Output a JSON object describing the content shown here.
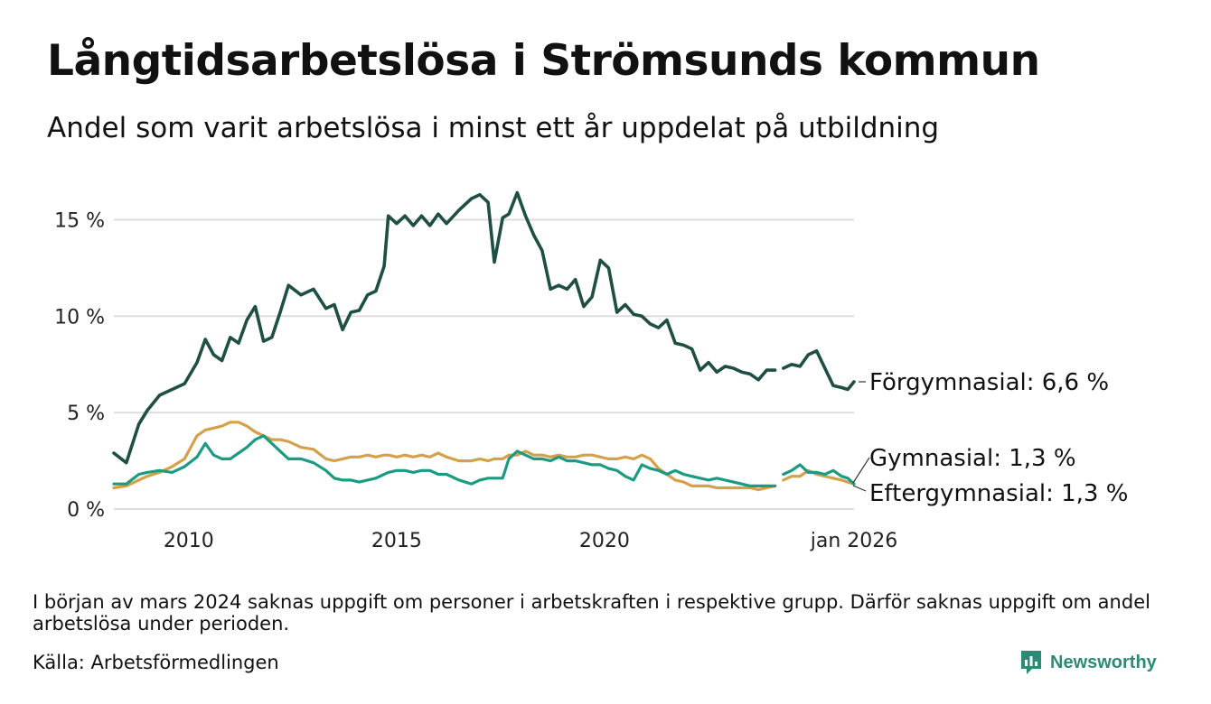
{
  "header": {
    "title": "Långtidsarbetslösa i Strömsunds kommun",
    "subtitle": "Andel som varit arbetslösa i minst ett år uppdelat på utbildning"
  },
  "footer": {
    "note": "I början av mars 2024 saknas uppgift om personer i arbetskraften i respektive grupp. Därför saknas uppgift om andel arbetslösa under perioden.",
    "source": "Källa: Arbetsförmedlingen",
    "brand": "Newsworthy"
  },
  "colors": {
    "forgymnasial": "#1f4e45",
    "gymnasial": "#1d9a82",
    "eftergymnasial": "#d4a04a",
    "grid": "#dddddd",
    "brand": "#2d8a74"
  },
  "chart_data": {
    "type": "line",
    "title": "Långtidsarbetslösa i Strömsunds kommun",
    "xlabel": "",
    "ylabel": "",
    "xlim": [
      2008.2,
      2026.0
    ],
    "ylim": [
      0,
      16.8
    ],
    "y_ticks": [
      0,
      5,
      10,
      15
    ],
    "y_tick_labels": [
      "0 %",
      "5 %",
      "10 %",
      "15 %"
    ],
    "x_ticks": [
      2010,
      2015,
      2020,
      2026
    ],
    "x_tick_labels": [
      "2010",
      "2015",
      "2020",
      "jan 2026"
    ],
    "gap": [
      2024.1,
      2024.3
    ],
    "series": [
      {
        "key": "forgymnasial",
        "name": "Förgymnasial",
        "end_label": "Förgymnasial: 6,6 %",
        "points": [
          [
            2008.2,
            2.9
          ],
          [
            2008.5,
            2.4
          ],
          [
            2008.8,
            4.4
          ],
          [
            2009.0,
            5.1
          ],
          [
            2009.3,
            5.9
          ],
          [
            2009.6,
            6.2
          ],
          [
            2009.9,
            6.5
          ],
          [
            2010.2,
            7.6
          ],
          [
            2010.4,
            8.8
          ],
          [
            2010.6,
            8.0
          ],
          [
            2010.8,
            7.7
          ],
          [
            2011.0,
            8.9
          ],
          [
            2011.2,
            8.6
          ],
          [
            2011.4,
            9.8
          ],
          [
            2011.6,
            10.5
          ],
          [
            2011.8,
            8.7
          ],
          [
            2012.0,
            8.9
          ],
          [
            2012.2,
            10.2
          ],
          [
            2012.4,
            11.6
          ],
          [
            2012.7,
            11.1
          ],
          [
            2013.0,
            11.4
          ],
          [
            2013.3,
            10.4
          ],
          [
            2013.5,
            10.6
          ],
          [
            2013.7,
            9.3
          ],
          [
            2013.9,
            10.2
          ],
          [
            2014.1,
            10.3
          ],
          [
            2014.3,
            11.1
          ],
          [
            2014.5,
            11.3
          ],
          [
            2014.7,
            12.6
          ],
          [
            2014.8,
            15.2
          ],
          [
            2015.0,
            14.8
          ],
          [
            2015.2,
            15.2
          ],
          [
            2015.4,
            14.7
          ],
          [
            2015.6,
            15.2
          ],
          [
            2015.8,
            14.7
          ],
          [
            2016.0,
            15.3
          ],
          [
            2016.2,
            14.8
          ],
          [
            2016.5,
            15.5
          ],
          [
            2016.8,
            16.1
          ],
          [
            2017.0,
            16.3
          ],
          [
            2017.2,
            15.9
          ],
          [
            2017.35,
            12.8
          ],
          [
            2017.55,
            15.1
          ],
          [
            2017.7,
            15.3
          ],
          [
            2017.9,
            16.4
          ],
          [
            2018.1,
            15.2
          ],
          [
            2018.3,
            14.2
          ],
          [
            2018.5,
            13.4
          ],
          [
            2018.7,
            11.4
          ],
          [
            2018.9,
            11.6
          ],
          [
            2019.1,
            11.4
          ],
          [
            2019.3,
            11.9
          ],
          [
            2019.5,
            10.5
          ],
          [
            2019.7,
            11.0
          ],
          [
            2019.9,
            12.9
          ],
          [
            2020.1,
            12.5
          ],
          [
            2020.3,
            10.2
          ],
          [
            2020.5,
            10.6
          ],
          [
            2020.7,
            10.1
          ],
          [
            2020.9,
            10.0
          ],
          [
            2021.1,
            9.6
          ],
          [
            2021.3,
            9.4
          ],
          [
            2021.5,
            9.8
          ],
          [
            2021.7,
            8.6
          ],
          [
            2021.9,
            8.5
          ],
          [
            2022.1,
            8.3
          ],
          [
            2022.3,
            7.2
          ],
          [
            2022.5,
            7.6
          ],
          [
            2022.7,
            7.1
          ],
          [
            2022.9,
            7.4
          ],
          [
            2023.1,
            7.3
          ],
          [
            2023.3,
            7.1
          ],
          [
            2023.5,
            7.0
          ],
          [
            2023.7,
            6.7
          ],
          [
            2023.9,
            7.2
          ],
          [
            2024.1,
            7.2
          ],
          null,
          [
            2024.3,
            7.3
          ],
          [
            2024.5,
            7.5
          ],
          [
            2024.7,
            7.4
          ],
          [
            2024.9,
            8.0
          ],
          [
            2025.1,
            8.2
          ],
          [
            2025.3,
            7.3
          ],
          [
            2025.5,
            6.4
          ],
          [
            2025.7,
            6.3
          ],
          [
            2025.85,
            6.2
          ],
          [
            2026.0,
            6.6
          ]
        ]
      },
      {
        "key": "gymnasial",
        "name": "Gymnasial",
        "end_label": "Gymnasial: 1,3 %",
        "points": [
          [
            2008.2,
            1.3
          ],
          [
            2008.5,
            1.3
          ],
          [
            2008.8,
            1.8
          ],
          [
            2009.0,
            1.9
          ],
          [
            2009.3,
            2.0
          ],
          [
            2009.6,
            1.9
          ],
          [
            2009.9,
            2.2
          ],
          [
            2010.2,
            2.7
          ],
          [
            2010.4,
            3.4
          ],
          [
            2010.6,
            2.8
          ],
          [
            2010.8,
            2.6
          ],
          [
            2011.0,
            2.6
          ],
          [
            2011.2,
            2.9
          ],
          [
            2011.4,
            3.2
          ],
          [
            2011.6,
            3.6
          ],
          [
            2011.8,
            3.8
          ],
          [
            2012.0,
            3.4
          ],
          [
            2012.2,
            3.0
          ],
          [
            2012.4,
            2.6
          ],
          [
            2012.7,
            2.6
          ],
          [
            2013.0,
            2.4
          ],
          [
            2013.3,
            2.0
          ],
          [
            2013.5,
            1.6
          ],
          [
            2013.7,
            1.5
          ],
          [
            2013.9,
            1.5
          ],
          [
            2014.1,
            1.4
          ],
          [
            2014.3,
            1.5
          ],
          [
            2014.5,
            1.6
          ],
          [
            2014.7,
            1.8
          ],
          [
            2014.8,
            1.9
          ],
          [
            2015.0,
            2.0
          ],
          [
            2015.2,
            2.0
          ],
          [
            2015.4,
            1.9
          ],
          [
            2015.6,
            2.0
          ],
          [
            2015.8,
            2.0
          ],
          [
            2016.0,
            1.8
          ],
          [
            2016.2,
            1.8
          ],
          [
            2016.5,
            1.5
          ],
          [
            2016.8,
            1.3
          ],
          [
            2017.0,
            1.5
          ],
          [
            2017.2,
            1.6
          ],
          [
            2017.35,
            1.6
          ],
          [
            2017.55,
            1.6
          ],
          [
            2017.7,
            2.6
          ],
          [
            2017.9,
            3.0
          ],
          [
            2018.1,
            2.8
          ],
          [
            2018.3,
            2.6
          ],
          [
            2018.5,
            2.6
          ],
          [
            2018.7,
            2.5
          ],
          [
            2018.9,
            2.7
          ],
          [
            2019.1,
            2.5
          ],
          [
            2019.3,
            2.5
          ],
          [
            2019.5,
            2.4
          ],
          [
            2019.7,
            2.3
          ],
          [
            2019.9,
            2.3
          ],
          [
            2020.1,
            2.1
          ],
          [
            2020.3,
            2.0
          ],
          [
            2020.5,
            1.7
          ],
          [
            2020.7,
            1.5
          ],
          [
            2020.9,
            2.3
          ],
          [
            2021.1,
            2.1
          ],
          [
            2021.3,
            2.0
          ],
          [
            2021.5,
            1.8
          ],
          [
            2021.7,
            2.0
          ],
          [
            2021.9,
            1.8
          ],
          [
            2022.1,
            1.7
          ],
          [
            2022.3,
            1.6
          ],
          [
            2022.5,
            1.5
          ],
          [
            2022.7,
            1.6
          ],
          [
            2022.9,
            1.5
          ],
          [
            2023.1,
            1.4
          ],
          [
            2023.3,
            1.3
          ],
          [
            2023.5,
            1.2
          ],
          [
            2023.7,
            1.2
          ],
          [
            2023.9,
            1.2
          ],
          [
            2024.1,
            1.2
          ],
          null,
          [
            2024.3,
            1.8
          ],
          [
            2024.5,
            2.0
          ],
          [
            2024.7,
            2.3
          ],
          [
            2024.9,
            1.9
          ],
          [
            2025.1,
            1.9
          ],
          [
            2025.3,
            1.8
          ],
          [
            2025.5,
            2.0
          ],
          [
            2025.7,
            1.7
          ],
          [
            2025.85,
            1.6
          ],
          [
            2026.0,
            1.3
          ]
        ]
      },
      {
        "key": "eftergymnasial",
        "name": "Eftergymnasial",
        "end_label": "Eftergymnasial: 1,3 %",
        "points": [
          [
            2008.2,
            1.1
          ],
          [
            2008.5,
            1.2
          ],
          [
            2008.8,
            1.5
          ],
          [
            2009.0,
            1.7
          ],
          [
            2009.3,
            1.9
          ],
          [
            2009.6,
            2.2
          ],
          [
            2009.9,
            2.6
          ],
          [
            2010.2,
            3.8
          ],
          [
            2010.4,
            4.1
          ],
          [
            2010.6,
            4.2
          ],
          [
            2010.8,
            4.3
          ],
          [
            2011.0,
            4.5
          ],
          [
            2011.2,
            4.5
          ],
          [
            2011.4,
            4.3
          ],
          [
            2011.6,
            4.0
          ],
          [
            2011.8,
            3.8
          ],
          [
            2012.0,
            3.6
          ],
          [
            2012.2,
            3.6
          ],
          [
            2012.4,
            3.5
          ],
          [
            2012.7,
            3.2
          ],
          [
            2013.0,
            3.1
          ],
          [
            2013.3,
            2.6
          ],
          [
            2013.5,
            2.5
          ],
          [
            2013.7,
            2.6
          ],
          [
            2013.9,
            2.7
          ],
          [
            2014.1,
            2.7
          ],
          [
            2014.3,
            2.8
          ],
          [
            2014.5,
            2.7
          ],
          [
            2014.7,
            2.8
          ],
          [
            2014.8,
            2.8
          ],
          [
            2015.0,
            2.7
          ],
          [
            2015.2,
            2.8
          ],
          [
            2015.4,
            2.7
          ],
          [
            2015.6,
            2.8
          ],
          [
            2015.8,
            2.7
          ],
          [
            2016.0,
            2.9
          ],
          [
            2016.2,
            2.7
          ],
          [
            2016.5,
            2.5
          ],
          [
            2016.8,
            2.5
          ],
          [
            2017.0,
            2.6
          ],
          [
            2017.2,
            2.5
          ],
          [
            2017.35,
            2.6
          ],
          [
            2017.55,
            2.6
          ],
          [
            2017.7,
            2.8
          ],
          [
            2017.9,
            2.8
          ],
          [
            2018.1,
            3.0
          ],
          [
            2018.3,
            2.8
          ],
          [
            2018.5,
            2.8
          ],
          [
            2018.7,
            2.7
          ],
          [
            2018.9,
            2.8
          ],
          [
            2019.1,
            2.7
          ],
          [
            2019.3,
            2.7
          ],
          [
            2019.5,
            2.8
          ],
          [
            2019.7,
            2.8
          ],
          [
            2019.9,
            2.7
          ],
          [
            2020.1,
            2.6
          ],
          [
            2020.3,
            2.6
          ],
          [
            2020.5,
            2.7
          ],
          [
            2020.7,
            2.6
          ],
          [
            2020.9,
            2.8
          ],
          [
            2021.1,
            2.6
          ],
          [
            2021.3,
            2.1
          ],
          [
            2021.5,
            1.8
          ],
          [
            2021.7,
            1.5
          ],
          [
            2021.9,
            1.4
          ],
          [
            2022.1,
            1.2
          ],
          [
            2022.3,
            1.2
          ],
          [
            2022.5,
            1.2
          ],
          [
            2022.7,
            1.1
          ],
          [
            2022.9,
            1.1
          ],
          [
            2023.1,
            1.1
          ],
          [
            2023.3,
            1.1
          ],
          [
            2023.5,
            1.1
          ],
          [
            2023.7,
            1.0
          ],
          [
            2023.9,
            1.1
          ],
          [
            2024.1,
            1.2
          ],
          null,
          [
            2024.3,
            1.5
          ],
          [
            2024.5,
            1.7
          ],
          [
            2024.7,
            1.7
          ],
          [
            2024.9,
            2.0
          ],
          [
            2025.1,
            1.8
          ],
          [
            2025.3,
            1.7
          ],
          [
            2025.5,
            1.6
          ],
          [
            2025.7,
            1.5
          ],
          [
            2025.85,
            1.4
          ],
          [
            2026.0,
            1.3
          ]
        ]
      }
    ]
  }
}
